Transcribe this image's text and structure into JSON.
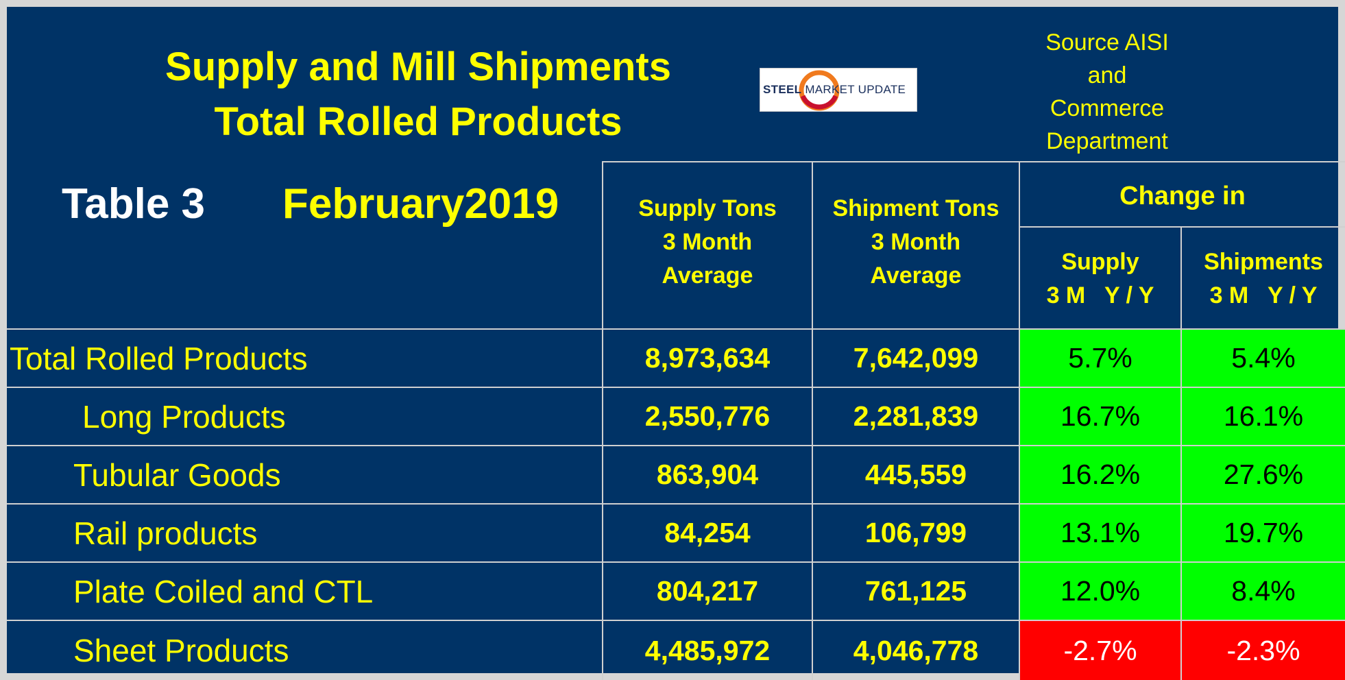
{
  "title": {
    "line1": "Supply and Mill Shipments",
    "line2": "Total Rolled Products"
  },
  "logo": {
    "brand_bold": "STEEL",
    "brand_rest": " MARKET UPDATE"
  },
  "source": {
    "lines": [
      "Source AISI",
      "and",
      "Commerce",
      "Department"
    ]
  },
  "table_label": "Table 3",
  "table_date": "February2019",
  "headers": {
    "supply": [
      "Supply Tons",
      "3 Month",
      "Average"
    ],
    "shipment": [
      "Shipment Tons",
      "3 Month",
      "Average"
    ],
    "change_in": "Change in",
    "change_supply": [
      "Supply",
      "3 M   Y / Y"
    ],
    "change_shipments": [
      "Shipments",
      "3 M   Y / Y"
    ]
  },
  "rows": [
    {
      "label": "Total Rolled Products",
      "supply": "8,973,634",
      "shipment": "7,642,099",
      "supply_change": "5.7%",
      "shipment_change": "5.4%"
    },
    {
      "label": "Long Products",
      "supply": "2,550,776",
      "shipment": "2,281,839",
      "supply_change": "16.7%",
      "shipment_change": "16.1%"
    },
    {
      "label": "Tubular Goods",
      "supply": "863,904",
      "shipment": "445,559",
      "supply_change": "16.2%",
      "shipment_change": "27.6%"
    },
    {
      "label": "Rail products",
      "supply": "84,254",
      "shipment": "106,799",
      "supply_change": "13.1%",
      "shipment_change": "19.7%"
    },
    {
      "label": "Plate Coiled and CTL",
      "supply": "804,217",
      "shipment": "761,125",
      "supply_change": "12.0%",
      "shipment_change": "8.4%"
    },
    {
      "label": "Sheet Products",
      "supply": "4,485,972",
      "shipment": "4,046,778",
      "supply_change": "-2.7%",
      "shipment_change": "-2.3%"
    }
  ],
  "colors": {
    "background": "#003366",
    "text_yellow": "#ffff00",
    "positive_fill": "#00ff00",
    "negative_fill": "#ff0000"
  }
}
